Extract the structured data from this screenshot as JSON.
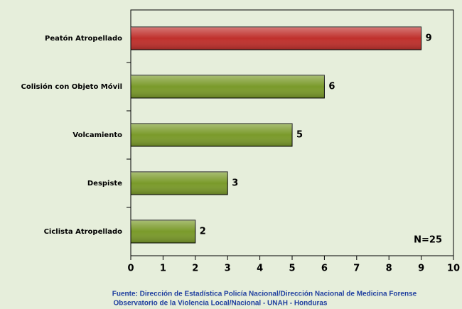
{
  "chart_data": {
    "type": "barh",
    "categories": [
      "Peatón Atropellado",
      "Colisión con Objeto Móvil",
      "Volcamiento",
      "Despiste",
      "Ciclista Atropellado"
    ],
    "values": [
      9,
      6,
      5,
      3,
      2
    ],
    "colors": [
      "#c0302c",
      "#7a9a2a",
      "#7a9a2a",
      "#7a9a2a",
      "#7a9a2a"
    ],
    "xlim": [
      0,
      10
    ],
    "xticks": [
      0,
      1,
      2,
      3,
      4,
      5,
      6,
      7,
      8,
      9,
      10
    ],
    "annotation": "N=25",
    "source": [
      "Fuente: Dirección de Estadística Policía Nacional/Dirección Nacional de Medicina Forense",
      "Observatorio de la Violencia Local/Nacional - UNAH - Honduras"
    ]
  }
}
